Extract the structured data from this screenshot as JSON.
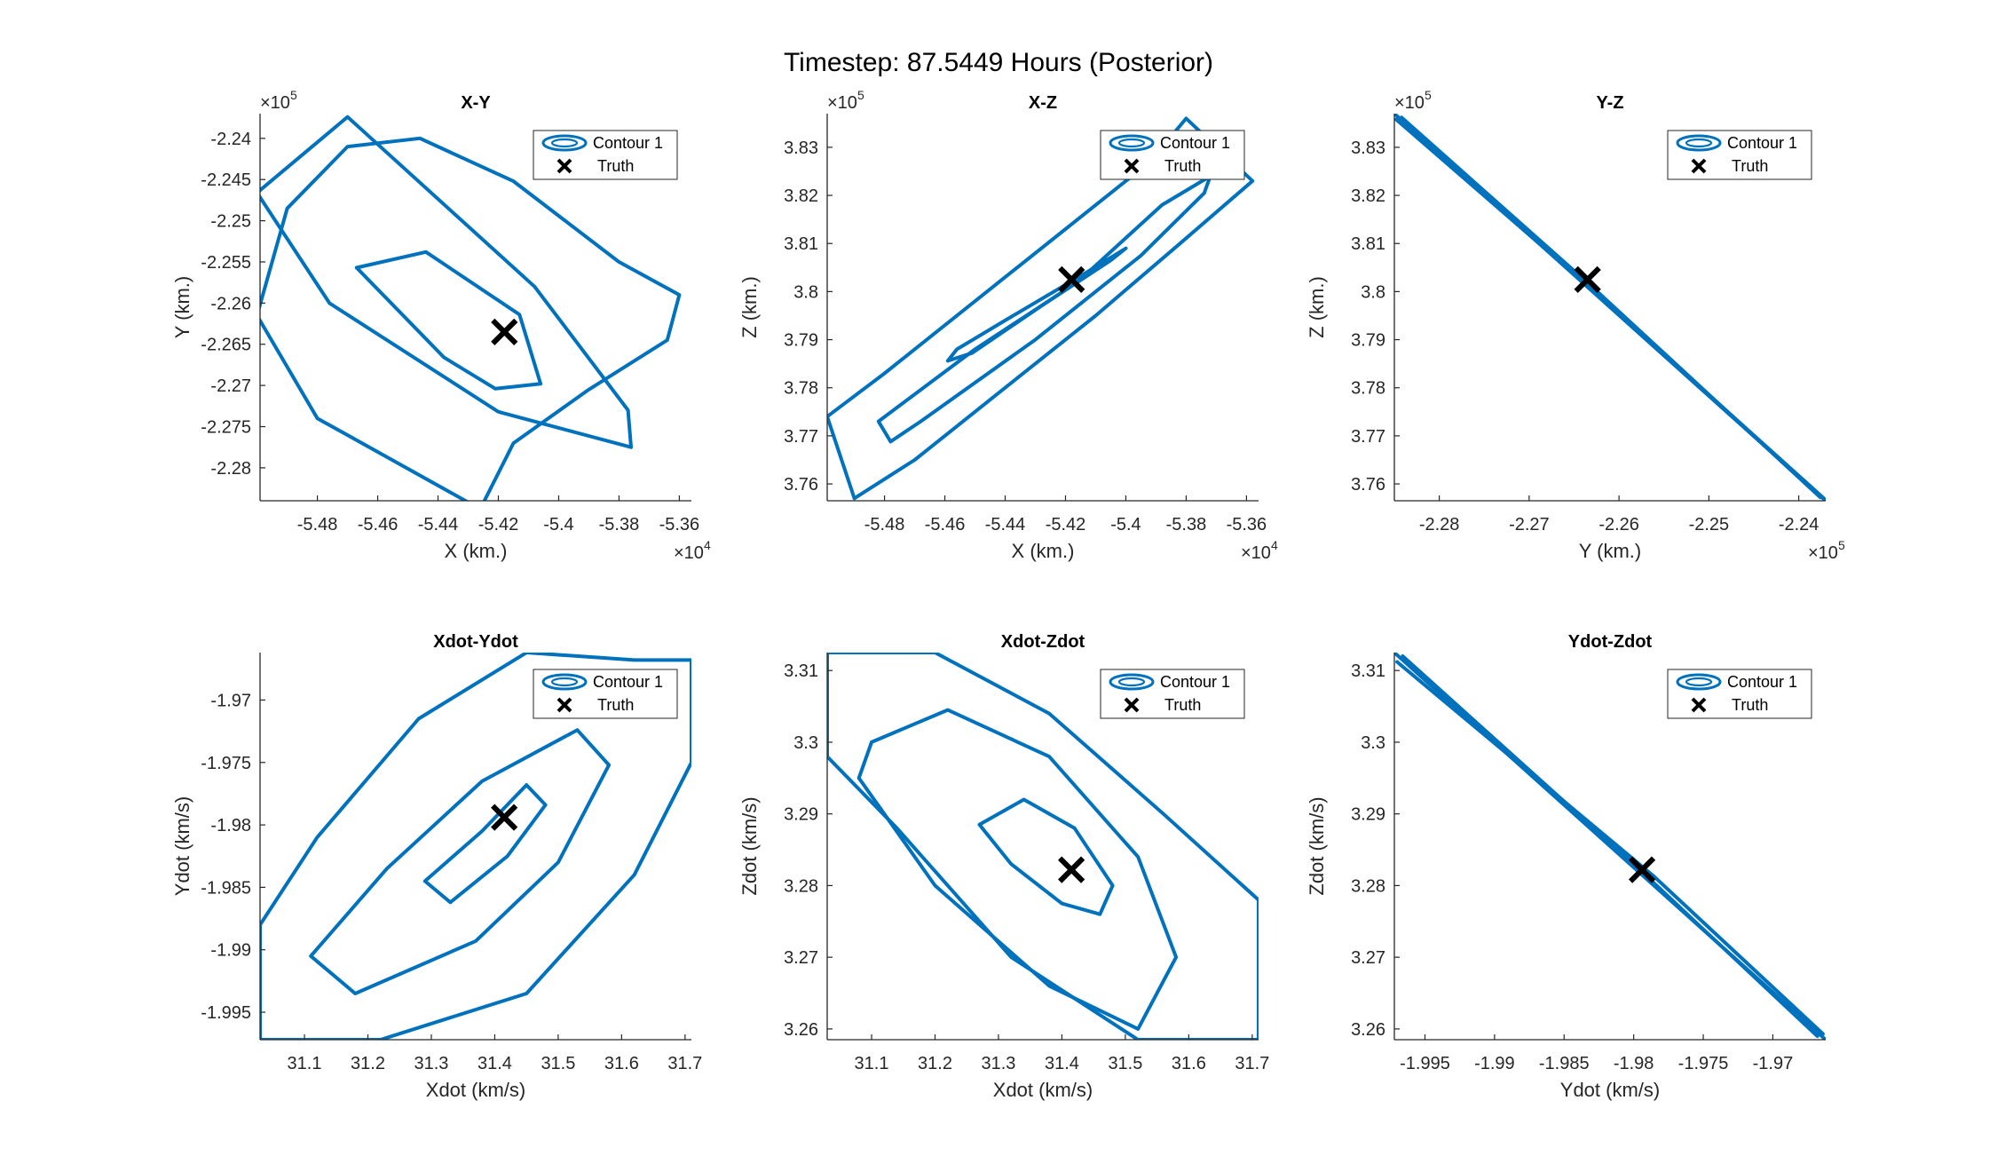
{
  "figure": {
    "title": "Timestep: 87.5449 Hours (Posterior)"
  },
  "legend": {
    "entries": [
      "Contour 1",
      "Truth"
    ]
  },
  "colors": {
    "contour": "#0072BD",
    "truth": "#000000",
    "axis": "#262626"
  },
  "chart_data": [
    {
      "type": "line",
      "title": "X-Y",
      "xlabel": "X (km.)",
      "ylabel": "Y (km.)",
      "xlim": [
        -54990,
        -53560
      ],
      "ylim": [
        -228400,
        -223700
      ],
      "xticks": [
        -54800,
        -54600,
        -54400,
        -54200,
        -54000,
        -53800,
        -53600
      ],
      "xtick_labels": [
        "-5.48",
        "-5.46",
        "-5.44",
        "-5.42",
        "-5.4",
        "-5.38",
        "-5.36"
      ],
      "xmult_base": "×10",
      "xmult_exp": "4",
      "yticks": [
        -228000,
        -227500,
        -227000,
        -226500,
        -226000,
        -225500,
        -225000,
        -224500,
        -224000
      ],
      "ytick_labels": [
        "-2.28",
        "-2.275",
        "-2.27",
        "-2.265",
        "-2.26",
        "-2.255",
        "-2.25",
        "-2.245",
        "-2.24"
      ],
      "ymult_base": "×10",
      "ymult_exp": "5",
      "truth": [
        -54180,
        -226350
      ],
      "contours": [
        [
          [
            -54670,
            -225570
          ],
          [
            -54440,
            -225380
          ],
          [
            -54130,
            -226140
          ],
          [
            -54060,
            -226980
          ],
          [
            -54210,
            -227040
          ],
          [
            -54380,
            -226660
          ],
          [
            -54670,
            -225570
          ]
        ],
        [
          [
            -54700,
            -223740
          ],
          [
            -55000,
            -224660
          ],
          [
            -54760,
            -226000
          ],
          [
            -54200,
            -227320
          ],
          [
            -53760,
            -227750
          ],
          [
            -53770,
            -227300
          ],
          [
            -54080,
            -225800
          ],
          [
            -54700,
            -223740
          ]
        ],
        [
          [
            -54260,
            -228500
          ],
          [
            -54800,
            -227400
          ],
          [
            -55000,
            -226150
          ],
          [
            -54900,
            -224850
          ],
          [
            -54700,
            -224100
          ],
          [
            -54460,
            -224000
          ],
          [
            -54150,
            -224520
          ],
          [
            -53800,
            -225500
          ],
          [
            -53600,
            -225900
          ],
          [
            -53640,
            -226450
          ],
          [
            -53900,
            -227050
          ],
          [
            -54150,
            -227700
          ],
          [
            -54260,
            -228500
          ]
        ]
      ]
    },
    {
      "type": "line",
      "title": "X-Z",
      "xlabel": "X (km.)",
      "ylabel": "Z (km.)",
      "xlim": [
        -54990,
        -53560
      ],
      "ylim": [
        375650,
        383700
      ],
      "xticks": [
        -54800,
        -54600,
        -54400,
        -54200,
        -54000,
        -53800,
        -53600
      ],
      "xtick_labels": [
        "-5.48",
        "-5.46",
        "-5.44",
        "-5.42",
        "-5.4",
        "-5.38",
        "-5.36"
      ],
      "xmult_base": "×10",
      "xmult_exp": "4",
      "yticks": [
        376000,
        377000,
        378000,
        379000,
        380000,
        381000,
        382000,
        383000
      ],
      "ytick_labels": [
        "3.76",
        "3.77",
        "3.78",
        "3.79",
        "3.8",
        "3.81",
        "3.82",
        "3.83"
      ],
      "ymult_base": "×10",
      "ymult_exp": "5",
      "truth": [
        -54180,
        380250
      ],
      "contours": [
        [
          [
            -54590,
            378560
          ],
          [
            -54560,
            378800
          ],
          [
            -54400,
            379400
          ],
          [
            -54130,
            380400
          ],
          [
            -54000,
            380900
          ],
          [
            -54050,
            380650
          ],
          [
            -54280,
            379700
          ],
          [
            -54510,
            378720
          ],
          [
            -54590,
            378560
          ]
        ],
        [
          [
            -54780,
            376880
          ],
          [
            -54820,
            377300
          ],
          [
            -54500,
            378800
          ],
          [
            -54160,
            380200
          ],
          [
            -53880,
            381800
          ],
          [
            -53720,
            382400
          ],
          [
            -53740,
            382050
          ],
          [
            -53950,
            380750
          ],
          [
            -54300,
            379000
          ],
          [
            -54680,
            377300
          ],
          [
            -54780,
            376880
          ]
        ],
        [
          [
            -54990,
            377400
          ],
          [
            -54800,
            378300
          ],
          [
            -54480,
            379900
          ],
          [
            -54200,
            381300
          ],
          [
            -53920,
            382700
          ],
          [
            -53800,
            383600
          ],
          [
            -53580,
            382300
          ],
          [
            -53820,
            381000
          ],
          [
            -54100,
            379500
          ],
          [
            -54400,
            378000
          ],
          [
            -54700,
            376500
          ],
          [
            -54900,
            375700
          ],
          [
            -54990,
            377400
          ]
        ]
      ]
    },
    {
      "type": "line",
      "title": "Y-Z",
      "xlabel": "Y (km.)",
      "ylabel": "Z (km.)",
      "xlim": [
        -228500,
        -223700
      ],
      "ylim": [
        375650,
        383700
      ],
      "xticks": [
        -228000,
        -227000,
        -226000,
        -225000,
        -224000
      ],
      "xtick_labels": [
        "-2.28",
        "-2.27",
        "-2.26",
        "-2.25",
        "-2.24"
      ],
      "xmult_base": "×10",
      "xmult_exp": "5",
      "yticks": [
        376000,
        377000,
        378000,
        379000,
        380000,
        381000,
        382000,
        383000
      ],
      "ytick_labels": [
        "3.76",
        "3.77",
        "3.78",
        "3.79",
        "3.8",
        "3.81",
        "3.82",
        "3.83"
      ],
      "ymult_base": "×10",
      "ymult_exp": "5",
      "truth": [
        -226350,
        380250
      ],
      "contours": [
        [
          [
            -228500,
            383700
          ],
          [
            -223700,
            375650
          ]
        ],
        [
          [
            -228420,
            383620
          ],
          [
            -226300,
            380100
          ],
          [
            -223760,
            375720
          ]
        ],
        [
          [
            -228480,
            383580
          ],
          [
            -226420,
            380240
          ],
          [
            -223720,
            375700
          ]
        ]
      ]
    },
    {
      "type": "line",
      "title": "Xdot-Ydot",
      "xlabel": "Xdot (km/s)",
      "ylabel": "Ydot (km/s)",
      "xlim": [
        31.03,
        31.71
      ],
      "ylim": [
        -1.9972,
        -1.9662
      ],
      "xticks": [
        31.1,
        31.2,
        31.3,
        31.4,
        31.5,
        31.6,
        31.7
      ],
      "xtick_labels": [
        "31.1",
        "31.2",
        "31.3",
        "31.4",
        "31.5",
        "31.6",
        "31.7"
      ],
      "yticks": [
        -1.995,
        -1.99,
        -1.985,
        -1.98,
        -1.975,
        -1.97
      ],
      "ytick_labels": [
        "-1.995",
        "-1.99",
        "-1.985",
        "-1.98",
        "-1.975",
        "-1.97"
      ],
      "truth": [
        31.415,
        -1.9794
      ],
      "contours": [
        [
          [
            31.29,
            -1.9845
          ],
          [
            31.38,
            -1.9805
          ],
          [
            31.45,
            -1.9768
          ],
          [
            31.48,
            -1.9784
          ],
          [
            31.42,
            -1.9825
          ],
          [
            31.33,
            -1.9862
          ],
          [
            31.29,
            -1.9845
          ]
        ],
        [
          [
            31.11,
            -1.9905
          ],
          [
            31.23,
            -1.9835
          ],
          [
            31.38,
            -1.9765
          ],
          [
            31.53,
            -1.9724
          ],
          [
            31.58,
            -1.9752
          ],
          [
            31.5,
            -1.983
          ],
          [
            31.37,
            -1.9893
          ],
          [
            31.18,
            -1.9935
          ],
          [
            31.11,
            -1.9905
          ]
        ],
        [
          [
            31.03,
            -1.988
          ],
          [
            31.12,
            -1.981
          ],
          [
            31.28,
            -1.9715
          ],
          [
            31.45,
            -1.9662
          ],
          [
            31.62,
            -1.9668
          ],
          [
            31.71,
            -1.9668
          ],
          [
            31.71,
            -1.975
          ],
          [
            31.62,
            -1.984
          ],
          [
            31.45,
            -1.9935
          ],
          [
            31.22,
            -1.9972
          ],
          [
            31.03,
            -1.9972
          ],
          [
            31.03,
            -1.988
          ]
        ]
      ]
    },
    {
      "type": "line",
      "title": "Xdot-Zdot",
      "xlabel": "Xdot (km/s)",
      "ylabel": "Zdot (km/s)",
      "xlim": [
        31.03,
        31.71
      ],
      "ylim": [
        3.2585,
        3.3125
      ],
      "xticks": [
        31.1,
        31.2,
        31.3,
        31.4,
        31.5,
        31.6,
        31.7
      ],
      "xtick_labels": [
        "31.1",
        "31.2",
        "31.3",
        "31.4",
        "31.5",
        "31.6",
        "31.7"
      ],
      "yticks": [
        3.26,
        3.27,
        3.28,
        3.29,
        3.3,
        3.31
      ],
      "ytick_labels": [
        "3.26",
        "3.27",
        "3.28",
        "3.29",
        "3.3",
        "3.31"
      ],
      "truth": [
        31.415,
        3.2822
      ],
      "contours": [
        [
          [
            31.27,
            3.2885
          ],
          [
            31.34,
            3.292
          ],
          [
            31.42,
            3.288
          ],
          [
            31.48,
            3.28
          ],
          [
            31.46,
            3.276
          ],
          [
            31.4,
            3.2775
          ],
          [
            31.32,
            3.283
          ],
          [
            31.27,
            3.2885
          ]
        ],
        [
          [
            31.1,
            3.3
          ],
          [
            31.22,
            3.3045
          ],
          [
            31.38,
            3.298
          ],
          [
            31.52,
            3.284
          ],
          [
            31.58,
            3.27
          ],
          [
            31.52,
            3.26
          ],
          [
            31.38,
            3.266
          ],
          [
            31.2,
            3.28
          ],
          [
            31.08,
            3.295
          ],
          [
            31.1,
            3.3
          ]
        ],
        [
          [
            31.03,
            3.298
          ],
          [
            31.14,
            3.288
          ],
          [
            31.32,
            3.27
          ],
          [
            31.52,
            3.2585
          ],
          [
            31.71,
            3.2585
          ],
          [
            31.71,
            3.278
          ],
          [
            31.56,
            3.29
          ],
          [
            31.38,
            3.304
          ],
          [
            31.2,
            3.3125
          ],
          [
            31.03,
            3.3125
          ],
          [
            31.03,
            3.298
          ]
        ]
      ]
    },
    {
      "type": "line",
      "title": "Ydot-Zdot",
      "xlabel": "Ydot (km/s)",
      "ylabel": "Zdot (km/s)",
      "xlim": [
        -1.9972,
        -1.9662
      ],
      "ylim": [
        3.2585,
        3.3125
      ],
      "xticks": [
        -1.995,
        -1.99,
        -1.985,
        -1.98,
        -1.975,
        -1.97
      ],
      "xtick_labels": [
        "-1.995",
        "-1.99",
        "-1.985",
        "-1.98",
        "-1.975",
        "-1.97"
      ],
      "yticks": [
        3.26,
        3.27,
        3.28,
        3.29,
        3.3,
        3.31
      ],
      "ytick_labels": [
        "3.26",
        "3.27",
        "3.28",
        "3.29",
        "3.3",
        "3.31"
      ],
      "truth": [
        -1.9794,
        3.2822
      ],
      "contours": [
        [
          [
            -1.9972,
            3.3125
          ],
          [
            -1.9662,
            3.2585
          ]
        ],
        [
          [
            -1.9966,
            3.312
          ],
          [
            -1.98,
            3.283
          ],
          [
            -1.9668,
            3.259
          ]
        ],
        [
          [
            -1.997,
            3.3112
          ],
          [
            -1.9785,
            3.2812
          ],
          [
            -1.9664,
            3.2593
          ]
        ]
      ]
    }
  ]
}
